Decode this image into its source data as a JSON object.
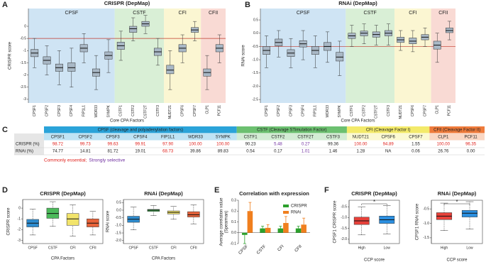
{
  "panel_labels": [
    "A",
    "B",
    "C",
    "D",
    "E",
    "F"
  ],
  "chart_data": [
    {
      "type": "box",
      "title": "CRISPR (DepMap)",
      "x_label": "Core CPA Factors",
      "y_label": "CRISPR score",
      "ylim": [
        -3.15,
        0.73
      ],
      "yticks": [
        -3,
        -2.5,
        -2,
        -1.5,
        -1,
        -0.5,
        0
      ],
      "ref_line": -0.5,
      "ref_color": "#c0392b",
      "box_color": "#a9b8c6",
      "groups": [
        {
          "name": "CPSF",
          "color": "#cfe4f4",
          "categories": [
            "CPSF1",
            "CPSF2",
            "CPSF3",
            "CPSF4",
            "FIP1L1",
            "WDR33",
            "SYMPK"
          ],
          "low": [
            -1.7,
            -2.0,
            -2.4,
            -2.5,
            -1.5,
            -2.6,
            -1.9
          ],
          "q1": [
            -1.25,
            -1.55,
            -1.85,
            -1.85,
            -1.05,
            -2.05,
            -1.35
          ],
          "median": [
            -1.1,
            -1.4,
            -1.7,
            -1.7,
            -0.9,
            -1.9,
            -1.2
          ],
          "q3": [
            -0.95,
            -1.25,
            -1.55,
            -1.5,
            -0.75,
            -1.75,
            -1.05
          ],
          "high": [
            -0.5,
            -0.8,
            -1.0,
            -0.9,
            -0.3,
            -1.2,
            -0.55
          ]
        },
        {
          "name": "CSTF",
          "color": "#d9efd6",
          "categories": [
            "CSTF1",
            "CSTF2",
            "CSTF2T",
            "CSTF3"
          ],
          "low": [
            -1.4,
            -0.6,
            -0.3,
            -1.6
          ],
          "q1": [
            -0.95,
            -0.25,
            0.0,
            -1.2
          ],
          "median": [
            -0.8,
            -0.1,
            0.1,
            -1.05
          ],
          "q3": [
            -0.65,
            0.0,
            0.2,
            -0.9
          ],
          "high": [
            -0.2,
            0.35,
            0.45,
            -0.5
          ]
        },
        {
          "name": "CFI",
          "color": "#fbf6d2",
          "categories": [
            "NUDT21",
            "CPSF6",
            "CPSF7"
          ],
          "low": [
            -2.6,
            -1.5,
            -0.6
          ],
          "q1": [
            -1.95,
            -1.05,
            -0.25
          ],
          "median": [
            -1.8,
            -0.9,
            -0.15
          ],
          "q3": [
            -1.6,
            -0.75,
            -0.05
          ],
          "high": [
            -1.0,
            -0.35,
            0.2
          ]
        },
        {
          "name": "CFII",
          "color": "#f9dad4",
          "categories": [
            "CLP1",
            "PCF11"
          ],
          "low": [
            -2.6,
            -1.5
          ],
          "q1": [
            -2.05,
            -1.05
          ],
          "median": [
            -1.9,
            -0.9
          ],
          "q3": [
            -1.75,
            -0.75
          ],
          "high": [
            -1.2,
            -0.35
          ]
        }
      ]
    },
    {
      "type": "box",
      "title": "RNAi (DepMap)",
      "x_label": "Core CPA Factors",
      "y_label": "RNAi score",
      "ylim": [
        -2.63,
        0.93
      ],
      "yticks": [
        -2.5,
        {
          "value": -2,
          "label": "-2.0"
        },
        -1.5,
        {
          "value": -1,
          "label": "-1.0"
        },
        -0.5,
        {
          "value": 0,
          "label": "0.0"
        },
        0.5
      ],
      "ref_line": -0.5,
      "ref_color": "#c0392b",
      "box_color": "#a9b8c6",
      "groups": [
        {
          "name": "CPSF",
          "color": "#cfe4f4",
          "categories": [
            "CPSF1",
            "CPSF2",
            "CPSF3",
            "CPSF4",
            "FIP1L1",
            "WDR33",
            "SYMPK"
          ],
          "low": [
            -1.3,
            -0.9,
            -1.3,
            -1.0,
            -1.3,
            -1.1,
            -1.6
          ],
          "q1": [
            -0.8,
            -0.48,
            -0.88,
            -0.52,
            -0.8,
            -0.65,
            -1.05
          ],
          "median": [
            -0.65,
            -0.35,
            -0.75,
            -0.4,
            -0.65,
            -0.5,
            -0.9
          ],
          "q3": [
            -0.5,
            -0.22,
            -0.62,
            -0.28,
            -0.5,
            -0.35,
            -0.72
          ],
          "high": [
            -0.1,
            0.1,
            -0.2,
            0.1,
            -0.1,
            0.05,
            -0.3
          ]
        },
        {
          "name": "CSTF",
          "color": "#d9efd6",
          "categories": [
            "CSTF1",
            "CSTF2",
            "CSTF2T",
            "CSTF3"
          ],
          "low": [
            -0.5,
            -0.4,
            -0.45,
            -0.45
          ],
          "q1": [
            -0.2,
            -0.1,
            -0.15,
            -0.1
          ],
          "median": [
            -0.1,
            0.0,
            -0.05,
            0.0
          ],
          "q3": [
            0.0,
            0.08,
            0.05,
            0.1
          ],
          "high": [
            0.3,
            0.35,
            0.3,
            0.35
          ]
        },
        {
          "name": "CFI",
          "color": "#fbf6d2",
          "categories": [
            "NUDT21",
            "CPSF6",
            "CPSF7"
          ],
          "low": [
            -0.65,
            -0.7,
            -0.5
          ],
          "q1": [
            -0.35,
            -0.4,
            -0.25
          ],
          "median": [
            -0.25,
            -0.3,
            -0.15
          ],
          "q3": [
            -0.15,
            -0.18,
            -0.05
          ],
          "high": [
            0.1,
            0.1,
            0.2
          ]
        },
        {
          "name": "CFII",
          "color": "#f9dad4",
          "categories": [
            "CLP1",
            "PCF11"
          ],
          "low": [
            -1.1,
            -0.25
          ],
          "q1": [
            -0.6,
            0.02
          ],
          "median": [
            -0.45,
            0.1
          ],
          "q3": [
            -0.3,
            0.2
          ],
          "high": [
            0.0,
            0.45
          ]
        }
      ]
    },
    {
      "type": "box",
      "title": "CRISPR (DepMap)",
      "x_label": "CPA Factors",
      "y_label": "CRISPR score",
      "ylim": [
        -3.3,
        0.8
      ],
      "yticks": [
        -3,
        -2,
        -1,
        0
      ],
      "categories": [
        "CPSF",
        "CSTF",
        "CFI",
        "CFII"
      ],
      "colors": [
        "#2e8ccf",
        "#4cba5b",
        "#f2e46b",
        "#e8633a"
      ],
      "low": [
        -2.5,
        -1.7,
        -2.6,
        -2.5
      ],
      "q1": [
        -1.75,
        -0.95,
        -1.6,
        -1.75
      ],
      "median": [
        -1.4,
        -0.5,
        -1.0,
        -1.4
      ],
      "q3": [
        -1.05,
        0.0,
        -0.5,
        -1.0
      ],
      "high": [
        -0.1,
        0.6,
        0.3,
        -0.3
      ]
    },
    {
      "type": "box",
      "title": "RNAi (DepMap)",
      "x_label": "CPA Factors",
      "y_label": "RNAi score",
      "ylim": [
        -2.2,
        0.7
      ],
      "yticks": [
        {
          "value": -2,
          "label": "-2.0"
        },
        -1.5,
        {
          "value": -1,
          "label": "-1.0"
        },
        -0.5,
        {
          "value": 0,
          "label": "0.0"
        },
        0.5
      ],
      "categories": [
        "CPSF",
        "CSTF",
        "CFI",
        "CFII"
      ],
      "colors": [
        "#2e8ccf",
        "#4cba5b",
        "#f2e46b",
        "#e8633a"
      ],
      "low": [
        -1.3,
        -0.35,
        -0.6,
        -0.9
      ],
      "q1": [
        -0.8,
        -0.08,
        -0.25,
        -0.45
      ],
      "median": [
        -0.6,
        0.0,
        -0.15,
        -0.3
      ],
      "q3": [
        -0.4,
        0.05,
        -0.05,
        -0.1
      ],
      "high": [
        0.2,
        0.3,
        0.25,
        0.35
      ]
    },
    {
      "type": "bar",
      "title": "Correlation with expression",
      "y_label": [
        "Average correlation value",
        "(Spearman)"
      ],
      "ylim": [
        -0.1,
        0.3
      ],
      "yticks": [
        -0.1,
        {
          "value": 0,
          "label": "0.0"
        },
        0.1,
        0.2,
        0.3
      ],
      "categories": [
        "CPSF",
        "CSTF",
        "CFI",
        "CFII"
      ],
      "series": [
        {
          "name": "CRISPR",
          "color": "#2ca02c",
          "values": [
            -0.02,
            0.04,
            0.04,
            0.04
          ],
          "errors": [
            0.08,
            0.02,
            0.02,
            0.02
          ]
        },
        {
          "name": "RNAi",
          "color": "#f07f1e",
          "values": [
            0.2,
            0.045,
            0.09,
            0.075
          ],
          "errors": [
            0.08,
            0.03,
            0.06,
            0.06
          ]
        }
      ]
    },
    {
      "type": "box",
      "title": "CRISPR (DepMap)",
      "x_label": "CCP score",
      "y_label": "CPSF1 CRISPR score",
      "ylim": [
        -2.2,
        -0.2
      ],
      "yticks": [
        {
          "value": -2,
          "label": "-2.0"
        },
        -1.5,
        {
          "value": -1,
          "label": "-1.0"
        },
        -0.5
      ],
      "categories": [
        "High",
        "Low"
      ],
      "colors": [
        "#e8413a",
        "#2b8fe0"
      ],
      "annotation": "*",
      "low": [
        -1.8,
        -1.75
      ],
      "q1": [
        -1.32,
        -1.27
      ],
      "median": [
        -1.15,
        -1.1
      ],
      "q3": [
        -0.98,
        -0.93
      ],
      "high": [
        -0.5,
        -0.45
      ]
    },
    {
      "type": "box",
      "title": "RNAi (DepMap)",
      "x_label": "CCP score",
      "y_label": "CPSF1 RNAi score",
      "ylim": [
        -1.7,
        -0.2
      ],
      "yticks": [
        -1.5,
        {
          "value": -1,
          "label": "-1.0"
        },
        -0.5
      ],
      "categories": [
        "High",
        "Low"
      ],
      "colors": [
        "#e8413a",
        "#2b8fe0"
      ],
      "annotation": "*",
      "low": [
        -1.25,
        -1.2
      ],
      "q1": [
        -0.87,
        -0.78
      ],
      "median": [
        -0.75,
        -0.65
      ],
      "q3": [
        -0.63,
        -0.55
      ],
      "high": [
        -0.3,
        -0.25
      ]
    }
  ],
  "table": {
    "groups": [
      {
        "name": "CPSF (cleavage and polyadenylation factors)",
        "color": "#2aa3d9",
        "columns": [
          "CPSF1",
          "CPSF2",
          "CPSF3",
          "CPSF4",
          "FIP1L1",
          "WDR33",
          "SYMPK"
        ]
      },
      {
        "name": "CSTF (Cleavage STimulation Factor)",
        "color": "#6cc070",
        "columns": [
          "CSTF1",
          "CSTF2",
          "CSTF2T",
          "CSTF3"
        ]
      },
      {
        "name": "CFI (Cleavage Factor I)",
        "color": "#f3ea6a",
        "columns": [
          "NUDT21",
          "CPSF6",
          "CPSF7"
        ]
      },
      {
        "name": "CFII (Cleavage Factor II)",
        "color": "#ef7b3b",
        "columns": [
          "CLP1",
          "PCF11"
        ]
      }
    ],
    "rows": [
      {
        "label": "CRISPR (%)",
        "cells": [
          "98.72",
          "99.73",
          "99.63",
          "99.91",
          "97.90",
          "100.00",
          "100.00",
          "90.23",
          "5.48",
          "0.27",
          "99.36",
          "100.00",
          "94.89",
          "1.55",
          "100.00",
          "96.35"
        ],
        "cell_colors": [
          "#e0201b",
          "#e0201b",
          "#e0201b",
          "#e0201b",
          "#e0201b",
          "#e0201b",
          "#e0201b",
          "#222222",
          "#7030a0",
          "#7030a0",
          "#222222",
          "#e0201b",
          "#e0201b",
          "#222222",
          "#e0201b",
          "#e0201b"
        ]
      },
      {
        "label": "RNAi (%)",
        "cells": [
          "74.77",
          "14.81",
          "81.72",
          "19.01",
          "68.73",
          "39.86",
          "89.83",
          "0.54",
          "0.17",
          "1.01",
          "1.46",
          "1.28",
          "NA",
          "0.06",
          "26.76",
          "0.00"
        ],
        "cell_colors": [
          "#222222",
          "#222222",
          "#222222",
          "#222222",
          "#e0201b",
          "#222222",
          "#222222",
          "#222222",
          "#222222",
          "#7030a0",
          "#222222",
          "#222222",
          "#222222",
          "#222222",
          "#222222",
          "#222222"
        ]
      }
    ],
    "footnote": [
      {
        "text": "Commonly essential;",
        "color": "#e0201b"
      },
      {
        "text": "Strongly selective",
        "color": "#7030a0"
      }
    ]
  }
}
